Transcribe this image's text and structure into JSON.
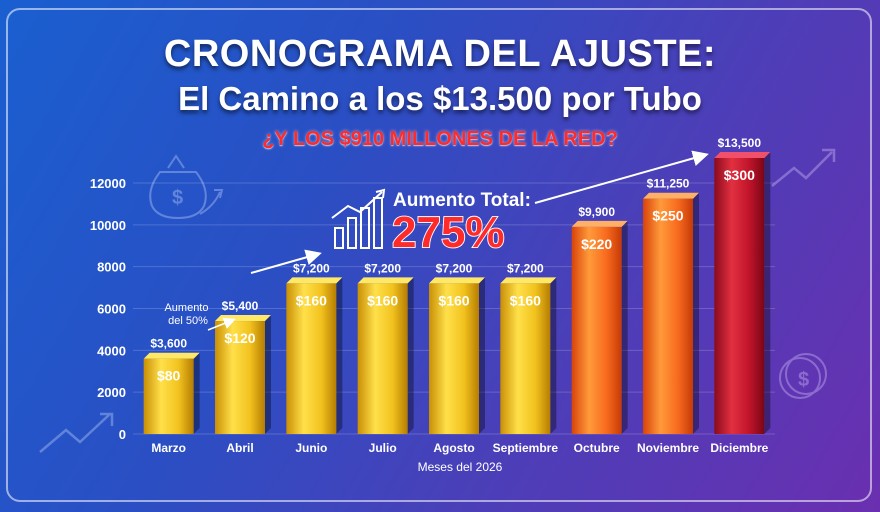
{
  "header": {
    "title_line1": "CRONOGRAMA DEL AJUSTE:",
    "title_line2": "El Camino a los $13.500 por Tubo",
    "subtitle": "¿Y LOS $910 MILLONES DE LA RED?"
  },
  "annotations": {
    "increase_50": "Aumento del 50%",
    "total_label": "Aumento Total:",
    "total_value": "275%"
  },
  "chart_data": {
    "type": "bar",
    "xlabel": "Meses del 2026",
    "ylabel": "",
    "ylim": [
      0,
      12000
    ],
    "yticks": [
      0,
      2000,
      4000,
      6000,
      8000,
      10000,
      12000
    ],
    "categories": [
      "Marzo",
      "Abril",
      "Junio",
      "Julio",
      "Agosto",
      "Septiembre",
      "Octubre",
      "Noviembre",
      "Diciembre"
    ],
    "values": [
      3600,
      5400,
      7200,
      7200,
      7200,
      7200,
      9900,
      11250,
      13500
    ],
    "value_labels": [
      "$3,600",
      "$5,400",
      "$7,200",
      "$7,200",
      "$7,200",
      "$7,200",
      "$9,900",
      "$11,250",
      "$13,500"
    ],
    "inner_labels": [
      "$80",
      "$120",
      "$160",
      "$160",
      "$160",
      "$160",
      "$220",
      "$250",
      "$300"
    ],
    "bar_colors": [
      "#e8b81a",
      "#e8b81a",
      "#e8b81a",
      "#e8b81a",
      "#e8b81a",
      "#e8b81a",
      "#f5641c",
      "#f5641c",
      "#c8102e"
    ],
    "grid": true,
    "legend": "none"
  }
}
